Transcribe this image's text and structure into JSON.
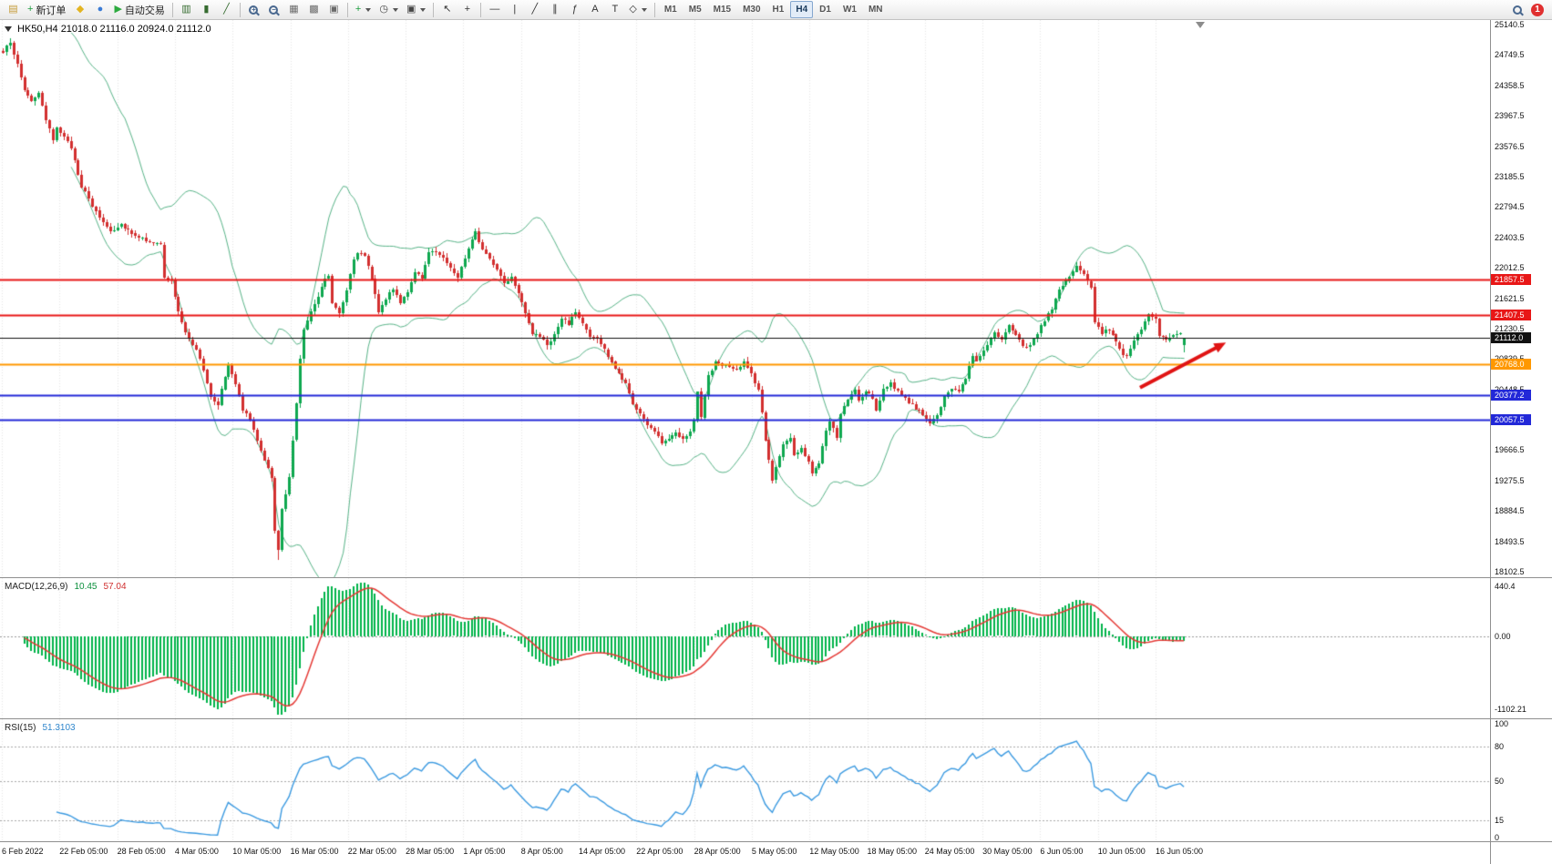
{
  "toolbar": {
    "groups": [
      [
        {
          "name": "chart-window-icon",
          "glyph": "▤",
          "color": "#c49a36"
        },
        {
          "name": "new-order-button",
          "glyph": "+",
          "color": "#1d9e3f",
          "label": "新订单"
        },
        {
          "name": "metaeditor-icon",
          "glyph": "◆",
          "color": "#e3b421"
        },
        {
          "name": "market-watch-icon",
          "glyph": "●",
          "color": "#3a7bd5"
        },
        {
          "name": "auto-trading-button",
          "glyph": "▶",
          "color": "#2daa3f",
          "label": "自动交易"
        }
      ],
      [
        {
          "name": "bar-chart-icon",
          "glyph": "▥",
          "color": "#356b2f"
        },
        {
          "name": "candlestick-chart-icon",
          "glyph": "▮",
          "color": "#356b2f"
        },
        {
          "name": "line-chart-icon",
          "glyph": "╱",
          "color": "#356b2f"
        }
      ],
      [
        {
          "name": "zoom-in-icon",
          "lens_sign": "+"
        },
        {
          "name": "zoom-out-icon",
          "lens_sign": "−"
        },
        {
          "name": "tile-windows-icon",
          "glyph": "▦",
          "color": "#6b6b6b"
        },
        {
          "name": "cascade-windows-icon",
          "glyph": "▩",
          "color": "#6b6b6b"
        },
        {
          "name": "arrange-windows-icon",
          "glyph": "▣",
          "color": "#6b6b6b"
        }
      ],
      [
        {
          "name": "indicators-button",
          "glyph": "+",
          "color": "#1d9e3f",
          "caret": true
        },
        {
          "name": "timeframes-dropdown",
          "glyph": "◷",
          "color": "#444444",
          "caret": true
        },
        {
          "name": "templates-dropdown",
          "glyph": "▣",
          "color": "#444444",
          "caret": true
        }
      ],
      [
        {
          "name": "cursor-icon",
          "glyph": "↖",
          "color": "#333333"
        },
        {
          "name": "crosshair-icon",
          "glyph": "+",
          "color": "#333333"
        }
      ],
      [
        {
          "name": "horizontal-line-icon",
          "glyph": "—",
          "color": "#333333"
        },
        {
          "name": "vertical-line-icon",
          "glyph": "|",
          "color": "#333333"
        },
        {
          "name": "trendline-icon",
          "glyph": "╱",
          "color": "#333333"
        },
        {
          "name": "channel-icon",
          "glyph": "∥",
          "color": "#333333"
        },
        {
          "name": "fibonacci-icon",
          "glyph": "ƒ",
          "color": "#333333"
        },
        {
          "name": "text-icon",
          "glyph": "A",
          "color": "#333333"
        },
        {
          "name": "label-icon",
          "glyph": "T",
          "color": "#333333"
        },
        {
          "name": "shapes-icon",
          "glyph": "◇",
          "color": "#333333",
          "caret": true
        }
      ]
    ],
    "timeframes": [
      "M1",
      "M5",
      "M15",
      "M30",
      "H1",
      "H4",
      "D1",
      "W1",
      "MN"
    ],
    "active_timeframe": "H4",
    "notification_count": "1"
  },
  "chart": {
    "title": "HK50,H4 21018.0 21116.0 20924.0 21112.0",
    "symbol": "HK50,H4",
    "price_axis": {
      "max": 25140.5,
      "min": 18102.5,
      "step": 391.0,
      "labels": [
        "25140.5",
        "24749.5",
        "24358.5",
        "23967.5",
        "23576.5",
        "23185.5",
        "22794.5",
        "22403.5",
        "22012.5",
        "21621.5",
        "21230.5",
        "20839.5",
        "20448.5",
        "20057.5",
        "19666.5",
        "19275.5",
        "18884.5",
        "18493.5",
        "18102.5"
      ]
    },
    "time_axis": [
      "6 Feb 2022",
      "22 Feb 05:00",
      "28 Feb 05:00",
      "4 Mar 05:00",
      "10 Mar 05:00",
      "16 Mar 05:00",
      "22 Mar 05:00",
      "28 Mar 05:00",
      "1 Apr 05:00",
      "8 Apr 05:00",
      "14 Apr 05:00",
      "22 Apr 05:00",
      "28 Apr 05:00",
      "5 May 05:00",
      "12 May 05:00",
      "18 May 05:00",
      "24 May 05:00",
      "30 May 05:00",
      "6 Jun 05:00",
      "10 Jun 05:00",
      "16 Jun 05:00"
    ]
  },
  "macd": {
    "name": "MACD(12,26,9)",
    "main_value": "10.45",
    "signal_value": "57.04",
    "axis_labels": [
      "440.4",
      "0.00",
      "-1102.21"
    ]
  },
  "rsi": {
    "name": "RSI(15)",
    "value": "51.3103",
    "axis_labels": [
      "100",
      "80",
      "50",
      "15",
      "0"
    ]
  },
  "colors": {
    "bull": "#0ea84f",
    "bear": "#d22f2f",
    "bollinger": "#58b488",
    "macd_histogram": "#00b44a",
    "macd_signal": "#e53935",
    "rsi_line": "#3b9ae1",
    "grid": "rgba(0,0,0,0.10)",
    "axis_text": "#111111",
    "panel_border": "#8f8f8f"
  },
  "chart_data": {
    "type": "candlestick",
    "symbol": "HK50",
    "timeframe": "H4",
    "bars": 331,
    "last_ohlc": {
      "open": 21018.0,
      "high": 21116.0,
      "low": 20924.0,
      "close": 21112.0
    },
    "close_path_anchors": [
      [
        0,
        24780
      ],
      [
        2,
        24920
      ],
      [
        4,
        24620
      ],
      [
        6,
        24300
      ],
      [
        8,
        24160
      ],
      [
        10,
        24260
      ],
      [
        12,
        23900
      ],
      [
        14,
        23660
      ],
      [
        15,
        23830
      ],
      [
        17,
        23690
      ],
      [
        19,
        23560
      ],
      [
        22,
        23060
      ],
      [
        25,
        22810
      ],
      [
        27,
        22660
      ],
      [
        30,
        22490
      ],
      [
        33,
        22570
      ],
      [
        36,
        22460
      ],
      [
        39,
        22390
      ],
      [
        42,
        22330
      ],
      [
        44,
        22300
      ],
      [
        45,
        21880
      ],
      [
        47,
        21850
      ],
      [
        49,
        21440
      ],
      [
        51,
        21170
      ],
      [
        54,
        20970
      ],
      [
        56,
        20700
      ],
      [
        58,
        20340
      ],
      [
        60,
        20250
      ],
      [
        61,
        20460
      ],
      [
        63,
        20790
      ],
      [
        65,
        20530
      ],
      [
        67,
        20190
      ],
      [
        69,
        20060
      ],
      [
        71,
        19810
      ],
      [
        73,
        19550
      ],
      [
        75,
        19310
      ],
      [
        76,
        18620
      ],
      [
        77,
        18390
      ],
      [
        78,
        18910
      ],
      [
        80,
        19310
      ],
      [
        82,
        20260
      ],
      [
        83,
        20860
      ],
      [
        84,
        21210
      ],
      [
        86,
        21440
      ],
      [
        88,
        21660
      ],
      [
        90,
        21890
      ],
      [
        91,
        21910
      ],
      [
        92,
        21570
      ],
      [
        94,
        21440
      ],
      [
        96,
        21730
      ],
      [
        98,
        22130
      ],
      [
        99,
        22220
      ],
      [
        101,
        22150
      ],
      [
        103,
        21880
      ],
      [
        105,
        21460
      ],
      [
        107,
        21610
      ],
      [
        109,
        21740
      ],
      [
        111,
        21570
      ],
      [
        113,
        21710
      ],
      [
        115,
        21940
      ],
      [
        117,
        21870
      ],
      [
        119,
        22230
      ],
      [
        121,
        22210
      ],
      [
        123,
        22160
      ],
      [
        125,
        22000
      ],
      [
        127,
        21890
      ],
      [
        129,
        22140
      ],
      [
        131,
        22390
      ],
      [
        132,
        22480
      ],
      [
        134,
        22240
      ],
      [
        136,
        22130
      ],
      [
        138,
        21990
      ],
      [
        140,
        21820
      ],
      [
        142,
        21900
      ],
      [
        144,
        21700
      ],
      [
        146,
        21440
      ],
      [
        148,
        21160
      ],
      [
        150,
        21130
      ],
      [
        152,
        21020
      ],
      [
        154,
        21150
      ],
      [
        156,
        21350
      ],
      [
        158,
        21300
      ],
      [
        160,
        21440
      ],
      [
        162,
        21290
      ],
      [
        164,
        21140
      ],
      [
        166,
        21090
      ],
      [
        168,
        20960
      ],
      [
        170,
        20790
      ],
      [
        172,
        20650
      ],
      [
        174,
        20530
      ],
      [
        176,
        20270
      ],
      [
        178,
        20130
      ],
      [
        180,
        20000
      ],
      [
        182,
        19910
      ],
      [
        184,
        19760
      ],
      [
        186,
        19830
      ],
      [
        188,
        19900
      ],
      [
        190,
        19820
      ],
      [
        192,
        19890
      ],
      [
        193,
        20060
      ],
      [
        194,
        20430
      ],
      [
        195,
        20090
      ],
      [
        197,
        20630
      ],
      [
        199,
        20790
      ],
      [
        201,
        20760
      ],
      [
        203,
        20730
      ],
      [
        205,
        20690
      ],
      [
        207,
        20800
      ],
      [
        209,
        20650
      ],
      [
        211,
        20440
      ],
      [
        212,
        20160
      ],
      [
        213,
        19790
      ],
      [
        215,
        19270
      ],
      [
        216,
        19450
      ],
      [
        218,
        19730
      ],
      [
        220,
        19810
      ],
      [
        221,
        19610
      ],
      [
        223,
        19690
      ],
      [
        225,
        19530
      ],
      [
        226,
        19370
      ],
      [
        228,
        19490
      ],
      [
        230,
        19910
      ],
      [
        231,
        20040
      ],
      [
        233,
        19830
      ],
      [
        234,
        20120
      ],
      [
        236,
        20320
      ],
      [
        238,
        20440
      ],
      [
        239,
        20300
      ],
      [
        241,
        20410
      ],
      [
        243,
        20340
      ],
      [
        244,
        20190
      ],
      [
        246,
        20450
      ],
      [
        248,
        20530
      ],
      [
        250,
        20410
      ],
      [
        252,
        20320
      ],
      [
        254,
        20250
      ],
      [
        256,
        20170
      ],
      [
        258,
        20060
      ],
      [
        259,
        20000
      ],
      [
        261,
        20120
      ],
      [
        263,
        20340
      ],
      [
        265,
        20460
      ],
      [
        267,
        20440
      ],
      [
        269,
        20600
      ],
      [
        271,
        20890
      ],
      [
        272,
        20810
      ],
      [
        274,
        20960
      ],
      [
        276,
        21100
      ],
      [
        277,
        21190
      ],
      [
        279,
        21070
      ],
      [
        281,
        21270
      ],
      [
        283,
        21150
      ],
      [
        285,
        20990
      ],
      [
        287,
        21020
      ],
      [
        289,
        21180
      ],
      [
        291,
        21340
      ],
      [
        293,
        21490
      ],
      [
        295,
        21730
      ],
      [
        297,
        21840
      ],
      [
        299,
        21950
      ],
      [
        300,
        22040
      ],
      [
        302,
        21930
      ],
      [
        304,
        21770
      ],
      [
        305,
        21310
      ],
      [
        307,
        21180
      ],
      [
        309,
        21220
      ],
      [
        311,
        21070
      ],
      [
        313,
        20910
      ],
      [
        314,
        20870
      ],
      [
        316,
        21060
      ],
      [
        318,
        21230
      ],
      [
        320,
        21410
      ],
      [
        322,
        21350
      ],
      [
        323,
        21150
      ],
      [
        325,
        21070
      ],
      [
        327,
        21150
      ],
      [
        329,
        21180
      ],
      [
        330,
        21112
      ]
    ],
    "extremes": [
      {
        "bar": 2,
        "high": 24966
      },
      {
        "bar": 77,
        "low": 18256
      }
    ],
    "levels": [
      {
        "price": 21857.5,
        "label": "21857.5",
        "color": "#e81717",
        "width": 2
      },
      {
        "price": 21407.5,
        "label": "21407.5",
        "color": "#e81717",
        "width": 2
      },
      {
        "price": 21112.0,
        "label": "21112.0",
        "color": "#111111",
        "width": 1
      },
      {
        "price": 20768.0,
        "label": "20768.0",
        "color": "#ff9800",
        "width": 2
      },
      {
        "price": 20377.2,
        "label": "20377.2",
        "color": "#2228d8",
        "width": 2
      },
      {
        "price": 20057.5,
        "label": "20057.5",
        "color": "#2228d8",
        "width": 2
      }
    ],
    "trend_arrow": {
      "from": [
        318,
        20470
      ],
      "to": [
        342,
        21050
      ],
      "color": "#e01414"
    },
    "overlays": {
      "bollinger": {
        "period": 20,
        "deviation": 2
      }
    },
    "indicators": {
      "macd": {
        "fast": 12,
        "slow": 26,
        "signal": 9
      },
      "rsi": {
        "period": 15
      }
    }
  }
}
